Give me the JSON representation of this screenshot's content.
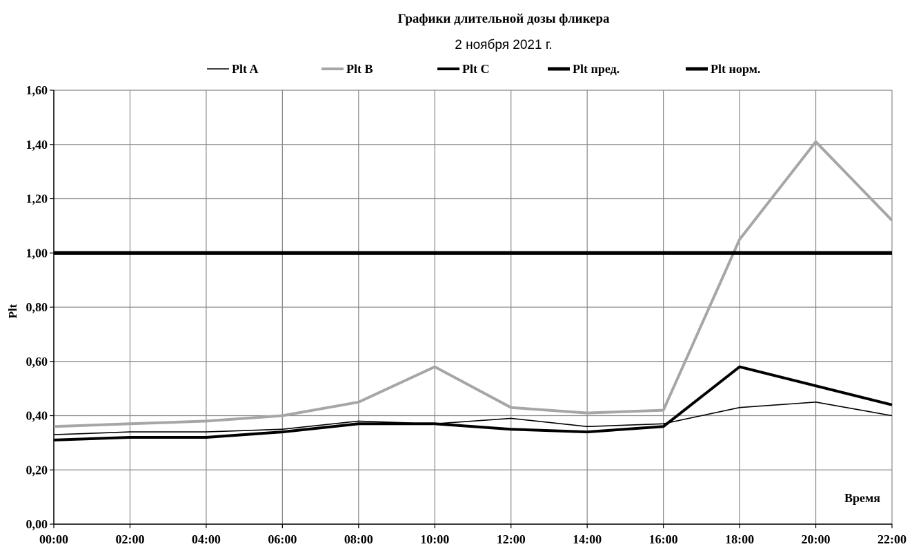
{
  "chart_data": {
    "type": "line",
    "title": "Графики длительной дозы фликера",
    "subtitle": "2 ноября 2021 г.",
    "xlabel": "Время",
    "ylabel": "Plt",
    "x": [
      "00:00",
      "02:00",
      "04:00",
      "06:00",
      "08:00",
      "10:00",
      "12:00",
      "14:00",
      "16:00",
      "18:00",
      "20:00",
      "22:00"
    ],
    "y_ticks": [
      "0,00",
      "0,20",
      "0,40",
      "0,60",
      "0,80",
      "1,00",
      "1,20",
      "1,40",
      "1,60"
    ],
    "ylim": [
      0,
      1.6
    ],
    "grid": true,
    "legend_position": "top",
    "series": [
      {
        "name": "Plt A",
        "color": "#000000",
        "width": "thin",
        "values": [
          0.33,
          0.34,
          0.34,
          0.35,
          0.38,
          0.37,
          0.39,
          0.36,
          0.37,
          0.43,
          0.45,
          0.4
        ]
      },
      {
        "name": "Plt B",
        "color": "#a6a6a6",
        "width": "thick",
        "values": [
          0.36,
          0.37,
          0.38,
          0.4,
          0.45,
          0.58,
          0.43,
          0.41,
          0.42,
          1.05,
          1.41,
          1.12
        ]
      },
      {
        "name": "Plt C",
        "color": "#000000",
        "width": "thick",
        "values": [
          0.31,
          0.32,
          0.32,
          0.34,
          0.37,
          0.37,
          0.35,
          0.34,
          0.36,
          0.58,
          0.51,
          0.44
        ]
      },
      {
        "name": "Plt пред.",
        "color": "#000000",
        "width": "heavy",
        "values": [
          1.0,
          1.0,
          1.0,
          1.0,
          1.0,
          1.0,
          1.0,
          1.0,
          1.0,
          1.0,
          1.0,
          1.0
        ]
      },
      {
        "name": "Plt норм.",
        "color": "#000000",
        "width": "heavy",
        "values": [
          1.0,
          1.0,
          1.0,
          1.0,
          1.0,
          1.0,
          1.0,
          1.0,
          1.0,
          1.0,
          1.0,
          1.0
        ]
      }
    ]
  }
}
